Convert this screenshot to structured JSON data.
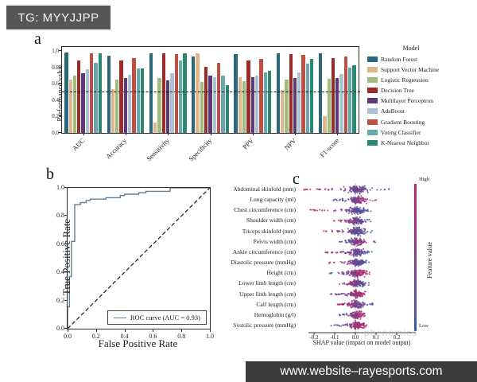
{
  "overlay": {
    "tag_text": "TG: MYYJJPP",
    "website_text": "www.website–rayesports.com",
    "faint_watermark": "phenomics"
  },
  "chart_data": [
    {
      "type": "bar",
      "panel_label": "a",
      "ylabel": "Performance value",
      "ylim": [
        0,
        1.05
      ],
      "yticks": [
        "0.0",
        "0.2",
        "0.4",
        "0.6",
        "0.8",
        "1.0"
      ],
      "reference_line": 0.5,
      "grid": false,
      "legend_title": "Model",
      "legend_position": "right",
      "categories": [
        "AUC",
        "Accuracy",
        "Sensitivity",
        "Specificity",
        "PPV",
        "NPV",
        "F1-score"
      ],
      "series": [
        {
          "name": "Random Forest",
          "color": "#2a6879",
          "values": [
            0.98,
            0.94,
            0.97,
            0.93,
            0.96,
            0.97,
            0.97
          ]
        },
        {
          "name": "Support Vector Machine",
          "color": "#dcb68d",
          "values": [
            0.65,
            0.53,
            0.13,
            0.97,
            0.68,
            0.52,
            0.2
          ]
        },
        {
          "name": "Logistic Regression",
          "color": "#a2bc7c",
          "values": [
            0.7,
            0.65,
            0.67,
            0.62,
            0.63,
            0.65,
            0.66
          ]
        },
        {
          "name": "Decision Tree",
          "color": "#9e2b27",
          "values": [
            0.88,
            0.88,
            0.97,
            0.81,
            0.88,
            0.96,
            0.91
          ]
        },
        {
          "name": "Multilayer Perceptron",
          "color": "#5a3a78",
          "values": [
            0.73,
            0.67,
            0.64,
            0.7,
            0.68,
            0.67,
            0.67
          ]
        },
        {
          "name": "AdaBoost",
          "color": "#abc3d4",
          "values": [
            0.78,
            0.71,
            0.73,
            0.68,
            0.7,
            0.74,
            0.72
          ]
        },
        {
          "name": "Gradient Boosting",
          "color": "#bd4f43",
          "values": [
            0.97,
            0.91,
            0.96,
            0.85,
            0.9,
            0.95,
            0.93
          ]
        },
        {
          "name": "Voting Classifier",
          "color": "#69a9ae",
          "values": [
            0.85,
            0.79,
            0.88,
            0.7,
            0.74,
            0.84,
            0.8
          ]
        },
        {
          "name": "K-Nearest Neighbor",
          "color": "#2a8872",
          "values": [
            0.97,
            0.79,
            0.97,
            0.58,
            0.76,
            0.9,
            0.83
          ]
        }
      ]
    },
    {
      "type": "line",
      "panel_label": "b",
      "xlabel": "False Positive Rate",
      "ylabel": "True Positive Rate",
      "xticks": [
        "0.0",
        "0.2",
        "0.4",
        "0.6",
        "0.8",
        "1.0"
      ],
      "yticks": [
        "0.0",
        "0.2",
        "0.4",
        "0.6",
        "0.8",
        "1.0"
      ],
      "xlim": [
        0,
        1
      ],
      "ylim": [
        0,
        1
      ],
      "legend_label": "ROC curve (AUC = 0.93)",
      "auc": 0.93,
      "line_color": "#627e92",
      "diagonal_reference": true,
      "roc_points": [
        [
          0,
          0
        ],
        [
          0,
          0.155
        ],
        [
          0.013,
          0.155
        ],
        [
          0.013,
          0.37
        ],
        [
          0.027,
          0.37
        ],
        [
          0.027,
          0.62
        ],
        [
          0.05,
          0.62
        ],
        [
          0.05,
          0.88
        ],
        [
          0.09,
          0.88
        ],
        [
          0.09,
          0.895
        ],
        [
          0.13,
          0.895
        ],
        [
          0.13,
          0.91
        ],
        [
          0.16,
          0.91
        ],
        [
          0.16,
          0.92
        ],
        [
          0.27,
          0.92
        ],
        [
          0.27,
          0.93
        ],
        [
          0.37,
          0.93
        ],
        [
          0.37,
          0.945
        ],
        [
          0.4,
          0.945
        ],
        [
          0.4,
          0.955
        ],
        [
          0.5,
          0.955
        ],
        [
          0.5,
          0.965
        ],
        [
          0.55,
          0.965
        ],
        [
          0.55,
          0.975
        ],
        [
          0.72,
          0.975
        ],
        [
          0.72,
          1.0
        ],
        [
          1.0,
          1.0
        ]
      ]
    },
    {
      "type": "scatter",
      "subtype": "shap-beeswarm",
      "panel_label": "c",
      "xlabel": "SHAP value (impact on model output)",
      "xticks": [
        "-0.2",
        "-0.1",
        "0.0",
        "0.1",
        "0.2"
      ],
      "xlim": [
        -0.29,
        0.22
      ],
      "colorbar": {
        "high": "High",
        "low": "Low",
        "label": "Feature value",
        "high_color": "#c2246a",
        "low_color": "#3b5ba5"
      },
      "features": [
        {
          "label": "Abdominal skinfold (mm)",
          "shap_min": -0.27,
          "shap_max": 0.17,
          "high_value_side": "left"
        },
        {
          "label": "Lung capacity (ml)",
          "shap_min": -0.13,
          "shap_max": 0.13,
          "high_value_side": "right"
        },
        {
          "label": "Chest circumference (cm)",
          "shap_min": -0.22,
          "shap_max": 0.09,
          "high_value_side": "left"
        },
        {
          "label": "Shoulder width (cm)",
          "shap_min": -0.11,
          "shap_max": 0.09,
          "high_value_side": "left"
        },
        {
          "label": "Triceps skinfold (mm)",
          "shap_min": -0.17,
          "shap_max": 0.08,
          "high_value_side": "left"
        },
        {
          "label": "Pelvis width (cm)",
          "shap_min": -0.08,
          "shap_max": 0.1,
          "high_value_side": "right"
        },
        {
          "label": "Ankle circumference (cm)",
          "shap_min": -0.15,
          "shap_max": 0.08,
          "high_value_side": "left"
        },
        {
          "label": "Diastolic pressure (mmHg)",
          "shap_min": -0.13,
          "shap_max": 0.07,
          "high_value_side": "left"
        },
        {
          "label": "Height (cm)",
          "shap_min": -0.13,
          "shap_max": 0.07,
          "high_value_side": "right"
        },
        {
          "label": "Lower limb length (cm)",
          "shap_min": -0.08,
          "shap_max": 0.07,
          "high_value_side": "left"
        },
        {
          "label": "Upper limb length (cm)",
          "shap_min": -0.12,
          "shap_max": 0.06,
          "high_value_side": "right"
        },
        {
          "label": "Calf length (cm)",
          "shap_min": -0.09,
          "shap_max": 0.09,
          "high_value_side": "left"
        },
        {
          "label": "Hemoglobin (g/l)",
          "shap_min": -0.08,
          "shap_max": 0.05,
          "high_value_side": "right"
        },
        {
          "label": "Systolic pressure (mmHg)",
          "shap_min": -0.12,
          "shap_max": 0.06,
          "high_value_side": "right"
        }
      ]
    }
  ]
}
